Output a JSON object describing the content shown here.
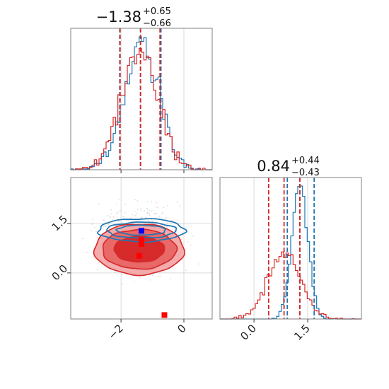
{
  "figure": {
    "panel1_title": {
      "median": "−1.38",
      "plus": "+0.65",
      "minus": "−0.66"
    },
    "panel3_title": {
      "median": "0.84",
      "plus": "+0.44",
      "minus": "−0.43"
    }
  },
  "colors": {
    "red": "#d62728",
    "blue": "#1f77b4",
    "red_light": "#f2a7a7",
    "red_mid": "#e86464",
    "marker_red": "#ff0000",
    "marker_blue": "#0000ff"
  },
  "chart_data": [
    {
      "type": "histogram",
      "panel": "top-left",
      "xlim": [
        -3.6,
        0.9
      ],
      "x_ticks": [
        -2,
        0
      ],
      "series": [
        {
          "name": "",
          "color": "blue",
          "center": -1.35,
          "sd": 0.55,
          "quantiles": [
            -2.04,
            -1.38,
            -0.73
          ]
        },
        {
          "name": "",
          "color": "red",
          "center": -1.42,
          "sd": 0.58,
          "quantiles": [
            -2.03,
            -1.38,
            -0.76
          ]
        }
      ]
    },
    {
      "type": "scatter",
      "panel": "bottom-left",
      "xlim": [
        -3.6,
        0.9
      ],
      "ylim": [
        -1.4,
        2.9
      ],
      "x_ticks": [
        -2,
        0
      ],
      "x_tick_labels": [
        "−2",
        "0"
      ],
      "y_ticks": [
        0.0,
        1.5
      ],
      "y_tick_labels": [
        "0.0",
        "1.5"
      ],
      "contours": {
        "red": {
          "center": [
            -1.42,
            0.72
          ],
          "radii": [
            [
              2.85,
              1.55
            ],
            [
              2.35,
              1.2
            ],
            [
              1.6,
              0.78
            ]
          ]
        },
        "blue": {
          "center": [
            -1.35,
            1.3
          ],
          "radii": [
            [
              2.75,
              0.7
            ],
            [
              2.2,
              0.48
            ],
            [
              1.55,
              0.3
            ]
          ]
        }
      },
      "markers": [
        {
          "x": -1.35,
          "y": 1.28,
          "color": "marker_blue"
        },
        {
          "x": -1.35,
          "y": 1.0,
          "color": "marker_red"
        },
        {
          "x": -1.35,
          "y": 0.88,
          "color": "marker_red"
        },
        {
          "x": -1.42,
          "y": 0.52,
          "color": "marker_red"
        },
        {
          "x": -0.62,
          "y": -1.28,
          "color": "marker_red"
        }
      ]
    },
    {
      "type": "histogram",
      "panel": "bottom-right",
      "xlim": [
        -0.95,
        3.0
      ],
      "x_ticks": [
        0.0,
        1.5
      ],
      "x_tick_labels": [
        "0.0",
        "1.5"
      ],
      "series": [
        {
          "name": "",
          "color": "blue",
          "center": 1.28,
          "sd": 0.22,
          "quantiles": [
            0.93,
            1.28,
            1.68
          ]
        },
        {
          "name": "",
          "color": "red",
          "center": 0.84,
          "sd": 0.45,
          "quantiles": [
            0.41,
            0.84,
            1.28
          ]
        }
      ]
    }
  ]
}
